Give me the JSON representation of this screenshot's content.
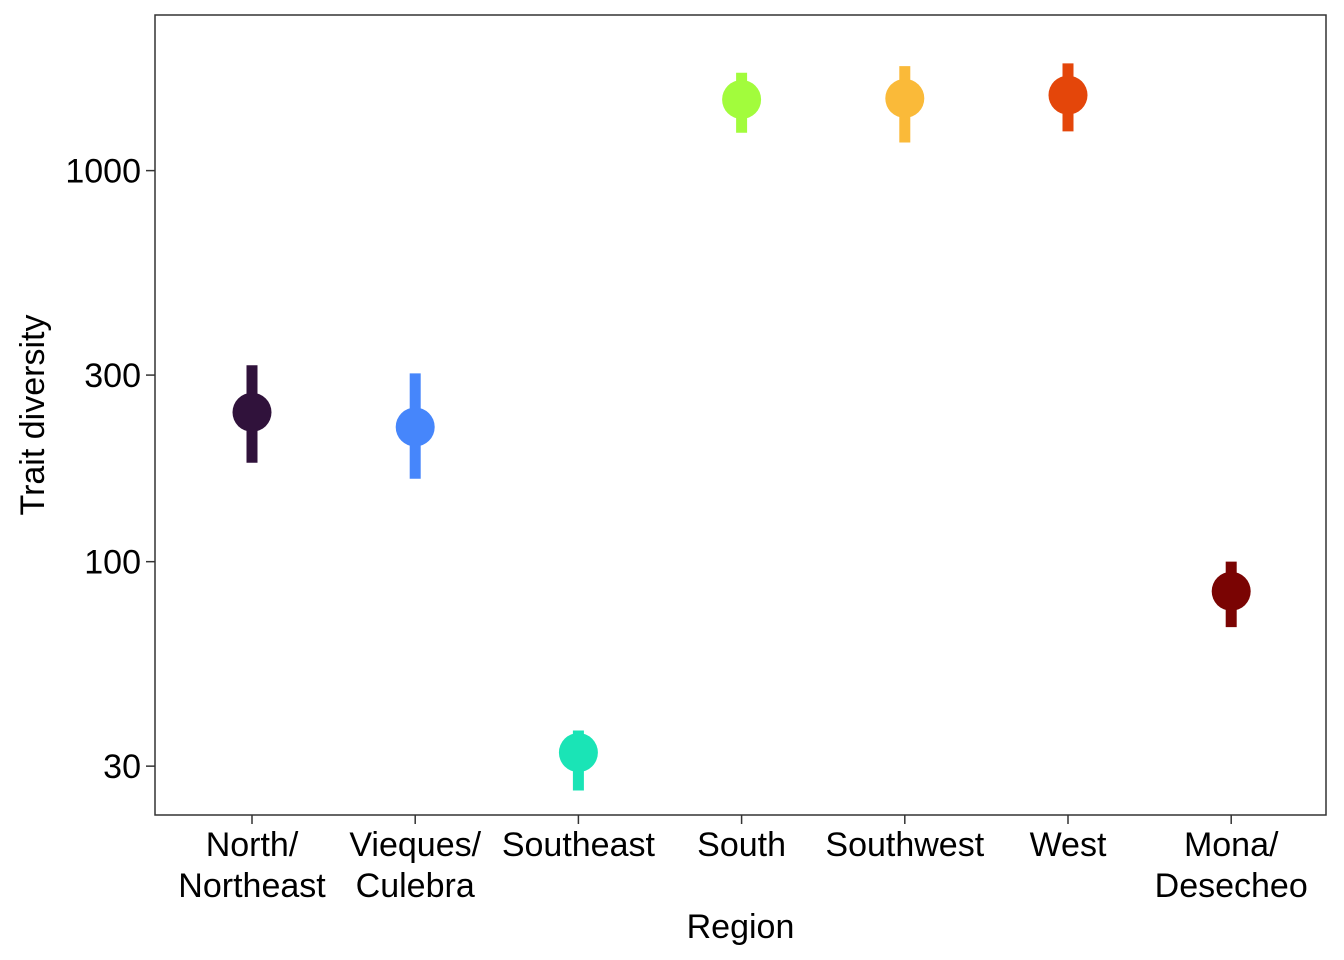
{
  "chart_data": {
    "type": "scatter",
    "xlabel": "Region",
    "ylabel": "Trait diversity",
    "y_scale": "log10",
    "ylim": [
      22.5,
      2500
    ],
    "y_ticks": [
      30,
      100,
      300,
      1000
    ],
    "y_tick_labels": [
      "30",
      "100",
      "300",
      "1000"
    ],
    "grid": false,
    "legend": "none",
    "categories": [
      [
        "North/",
        "Northeast"
      ],
      [
        "Vieques/",
        "Culebra"
      ],
      [
        "Southeast"
      ],
      [
        "South"
      ],
      [
        "Southwest"
      ],
      [
        "West"
      ],
      [
        "Mona/",
        "Desecheo"
      ]
    ],
    "points": [
      {
        "value": 241,
        "lower": 179,
        "upper": 318,
        "color": "#30123B"
      },
      {
        "value": 221,
        "lower": 163,
        "upper": 303,
        "color": "#4686FB"
      },
      {
        "value": 32.5,
        "lower": 26,
        "upper": 37,
        "color": "#1AE4B6"
      },
      {
        "value": 1520,
        "lower": 1250,
        "upper": 1780,
        "color": "#A2FC3C"
      },
      {
        "value": 1530,
        "lower": 1180,
        "upper": 1850,
        "color": "#FABA39"
      },
      {
        "value": 1560,
        "lower": 1260,
        "upper": 1880,
        "color": "#E4460A"
      },
      {
        "value": 84,
        "lower": 68,
        "upper": 100,
        "color": "#7A0403"
      }
    ]
  }
}
